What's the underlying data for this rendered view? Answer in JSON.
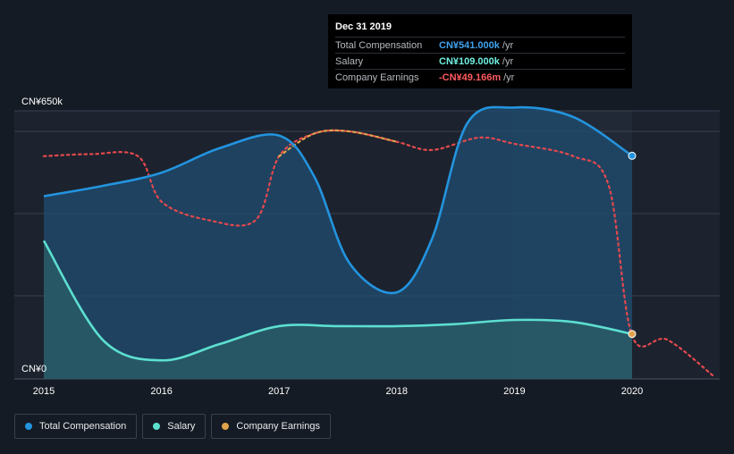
{
  "chart_data": {
    "type": "area",
    "y_axis_labels": [
      "CN¥650k",
      "CN¥0"
    ],
    "x_ticks": [
      "2015",
      "2016",
      "2017",
      "2018",
      "2019",
      "2020"
    ],
    "ylim": [
      0,
      650
    ],
    "grid": true,
    "legend_position": "bottom-left",
    "series": [
      {
        "name": "Total Compensation",
        "color": "#2394df",
        "x": [
          2015.0,
          2015.5,
          2016.0,
          2016.5,
          2017.0,
          2017.3,
          2017.6,
          2018.0,
          2018.3,
          2018.6,
          2019.0,
          2019.5,
          2020.0
        ],
        "values": [
          443,
          468,
          500,
          560,
          590,
          490,
          280,
          210,
          340,
          620,
          658,
          635,
          541
        ]
      },
      {
        "name": "Salary",
        "color": "#5ddfd0",
        "x": [
          2015.0,
          2015.5,
          2016.0,
          2016.5,
          2017.0,
          2017.5,
          2018.0,
          2018.5,
          2019.0,
          2019.5,
          2020.0
        ],
        "values": [
          335,
          95,
          45,
          85,
          128,
          128,
          128,
          133,
          143,
          138,
          109
        ]
      },
      {
        "name": "Company Earnings",
        "color": "#e5484d",
        "x": [
          2015.0,
          2015.4,
          2015.8,
          2016.0,
          2016.4,
          2016.8,
          2017.0,
          2017.3,
          2017.6,
          2018.0,
          2018.3,
          2018.7,
          2019.0,
          2019.5,
          2019.8,
          2020.0,
          2020.3,
          2020.7
        ],
        "values": [
          540,
          545,
          540,
          430,
          385,
          385,
          540,
          595,
          600,
          575,
          555,
          585,
          570,
          540,
          470,
          105,
          95,
          5
        ]
      }
    ]
  },
  "tooltip": {
    "date": "Dec 31 2019",
    "rows": [
      {
        "name": "Total Compensation",
        "value": "CN¥541.000k",
        "unit": "/yr",
        "color": "#3fa3f0"
      },
      {
        "name": "Salary",
        "value": "CN¥109.000k",
        "unit": "/yr",
        "color": "#6ff0e0"
      },
      {
        "name": "Company Earnings",
        "value": "-CN¥49.166m",
        "unit": "/yr",
        "color": "#ff5a5f"
      }
    ]
  },
  "legend": [
    {
      "label": "Total Compensation",
      "color": "#2394df"
    },
    {
      "label": "Salary",
      "color": "#5ddfd0"
    },
    {
      "label": "Company Earnings",
      "color": "#e0a34c"
    }
  ]
}
